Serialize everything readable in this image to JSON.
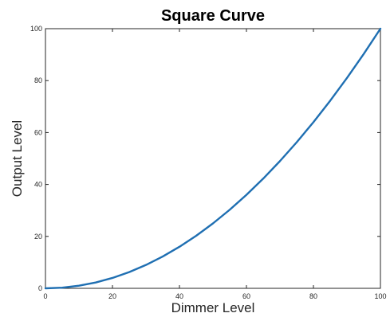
{
  "chart_data": {
    "type": "line",
    "title": "Square Curve",
    "xlabel": "Dimmer Level",
    "ylabel": "Output Level",
    "xlim": [
      0,
      100
    ],
    "ylim": [
      0,
      100
    ],
    "x_ticks": [
      0,
      20,
      40,
      60,
      80,
      100
    ],
    "y_ticks": [
      0,
      20,
      40,
      60,
      80,
      100
    ],
    "grid": false,
    "series": [
      {
        "color": "#1f6fb2",
        "x": [
          0,
          5,
          10,
          15,
          20,
          25,
          30,
          35,
          40,
          45,
          50,
          55,
          60,
          65,
          70,
          75,
          80,
          85,
          90,
          95,
          100
        ],
        "y": [
          0,
          0.25,
          1,
          2.25,
          4,
          6.25,
          9,
          12.25,
          16,
          20.25,
          25,
          30.25,
          36,
          42.25,
          49,
          56.25,
          64,
          72.25,
          81,
          90.25,
          100
        ]
      }
    ]
  }
}
